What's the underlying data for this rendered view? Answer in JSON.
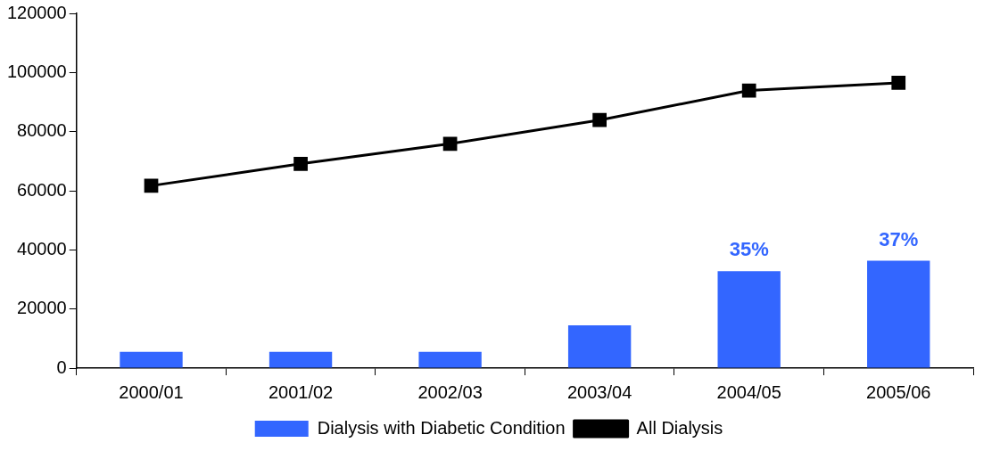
{
  "chart_data": {
    "type": "bar",
    "categories": [
      "2000/01",
      "2001/02",
      "2002/03",
      "2003/04",
      "2004/05",
      "2005/06"
    ],
    "series": [
      {
        "name": "Dialysis with Diabetic Condition",
        "color": "#3366ff",
        "values": [
          5500,
          5500,
          5500,
          14500,
          32800,
          36300
        ]
      },
      {
        "name": "All Dialysis",
        "type": "line",
        "color": "#000000",
        "values": [
          61700,
          69100,
          75900,
          83900,
          93900,
          96500
        ]
      }
    ],
    "ylim": [
      0,
      120000
    ],
    "yticks": [
      0,
      20000,
      40000,
      60000,
      80000,
      100000,
      120000
    ],
    "annotations": [
      {
        "text": "35%",
        "x": "2004/05",
        "y": 32800
      },
      {
        "text": "37%",
        "x": "2005/06",
        "y": 36300
      }
    ],
    "grid": false,
    "legend": "bottom",
    "marker": "square",
    "line_style": "solid"
  }
}
